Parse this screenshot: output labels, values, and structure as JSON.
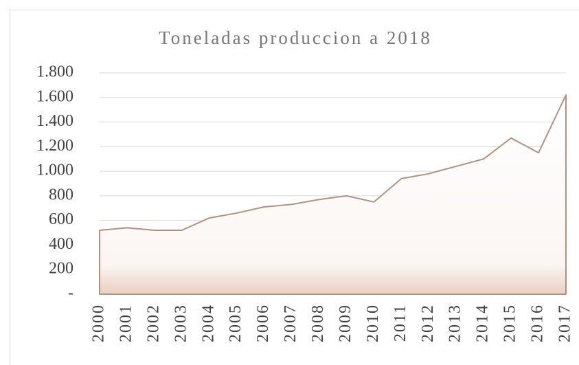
{
  "chart_data": {
    "type": "area",
    "title": "Toneladas produccion a 2018",
    "categories": [
      "2000",
      "2001",
      "2002",
      "2003",
      "2004",
      "2005",
      "2006",
      "2007",
      "2008",
      "2009",
      "2010",
      "2011",
      "2012",
      "2013",
      "2014",
      "2015",
      "2016",
      "2017"
    ],
    "values": [
      520,
      540,
      520,
      520,
      620,
      660,
      710,
      730,
      770,
      800,
      750,
      940,
      980,
      1040,
      1100,
      1270,
      1150,
      1620
    ],
    "color": "#b4917f",
    "ylim": [
      0,
      1800
    ],
    "yticks": [
      {
        "value": 0,
        "label": "-"
      },
      200,
      400,
      600,
      800,
      {
        "value": 1000,
        "label": "1.000"
      },
      {
        "value": 1200,
        "label": "1.200"
      },
      {
        "value": 1400,
        "label": "1.400"
      },
      {
        "value": 1600,
        "label": "1.600"
      },
      {
        "value": 1800,
        "label": "1.800"
      }
    ],
    "grid": true
  }
}
